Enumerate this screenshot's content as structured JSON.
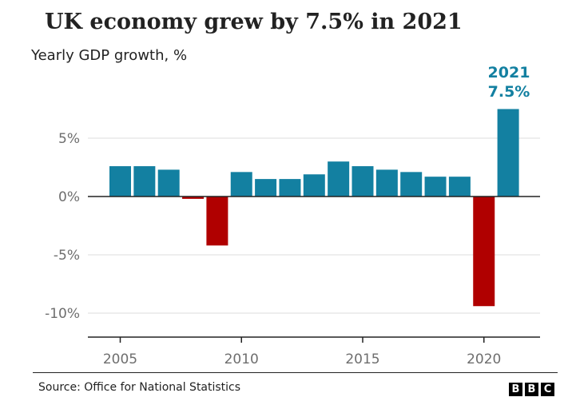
{
  "chart_data": {
    "type": "bar",
    "title": "UK economy grew by 7.5% in 2021",
    "subtitle": "Yearly GDP growth, %",
    "xlabel": "",
    "ylabel": "",
    "x": [
      2005,
      2006,
      2007,
      2008,
      2009,
      2010,
      2011,
      2012,
      2013,
      2014,
      2015,
      2016,
      2017,
      2018,
      2019,
      2020,
      2021
    ],
    "values": [
      2.6,
      2.6,
      2.3,
      -0.2,
      -4.2,
      2.1,
      1.5,
      1.5,
      1.9,
      3.0,
      2.6,
      2.3,
      2.1,
      1.7,
      1.7,
      -9.4,
      7.5
    ],
    "ylim": [
      -12,
      9
    ],
    "yticks": [
      5,
      0,
      -5,
      -10
    ],
    "ytick_labels": [
      "5%",
      "0%",
      "-5%",
      "-10%"
    ],
    "xticks": [
      2005,
      2010,
      2015,
      2020
    ],
    "xtick_labels": [
      "2005",
      "2010",
      "2015",
      "2020"
    ],
    "grid": true,
    "colors": {
      "positive": "#1380a1",
      "negative": "#b00000",
      "callout": "#1380a1"
    },
    "annotation": {
      "year_label": "2021",
      "value_label": "7.5%"
    }
  },
  "footer": {
    "source": "Source: Office for National Statistics",
    "logo_letters": [
      "B",
      "B",
      "C"
    ]
  }
}
